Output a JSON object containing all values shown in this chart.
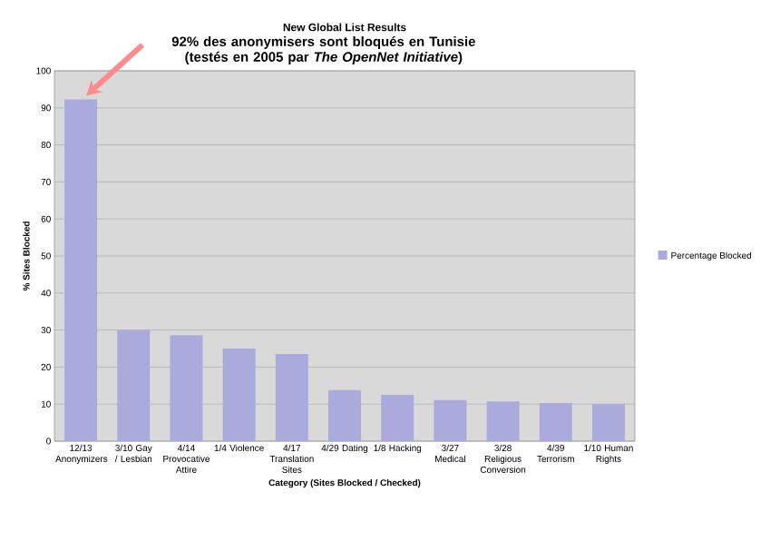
{
  "chart_data": {
    "type": "bar",
    "title": "New Global List Results",
    "xlabel": "Category (Sites Blocked / Checked)",
    "ylabel": "% Sites Blocked",
    "categories": [
      "12/13 Anonymizers",
      "3/10 Gay / Lesbian",
      "4/14 Provocative Attire",
      "1/4 Violence",
      "4/17 Translation Sites",
      "4/29 Dating",
      "1/8 Hacking",
      "3/27 Medical",
      "3/28 Religious Conversion",
      "4/39 Terrorism",
      "1/10 Human Rights"
    ],
    "series": [
      {
        "name": "Percentage Blocked",
        "color": "#aaaadc",
        "values": [
          92.3,
          30,
          28.6,
          25,
          23.5,
          13.8,
          12.5,
          11.1,
          10.7,
          10.3,
          10
        ]
      }
    ],
    "annotations": [
      "92% des anonymisers sont bloqués en Tunisie (testés en 2005 par *The OpenNet Initiative*)"
    ],
    "ylim": [
      0,
      100
    ],
    "yticks": [
      0,
      10,
      20,
      30,
      40,
      50,
      60,
      70,
      80,
      90,
      100
    ],
    "grid": "y",
    "legend": "right"
  }
}
